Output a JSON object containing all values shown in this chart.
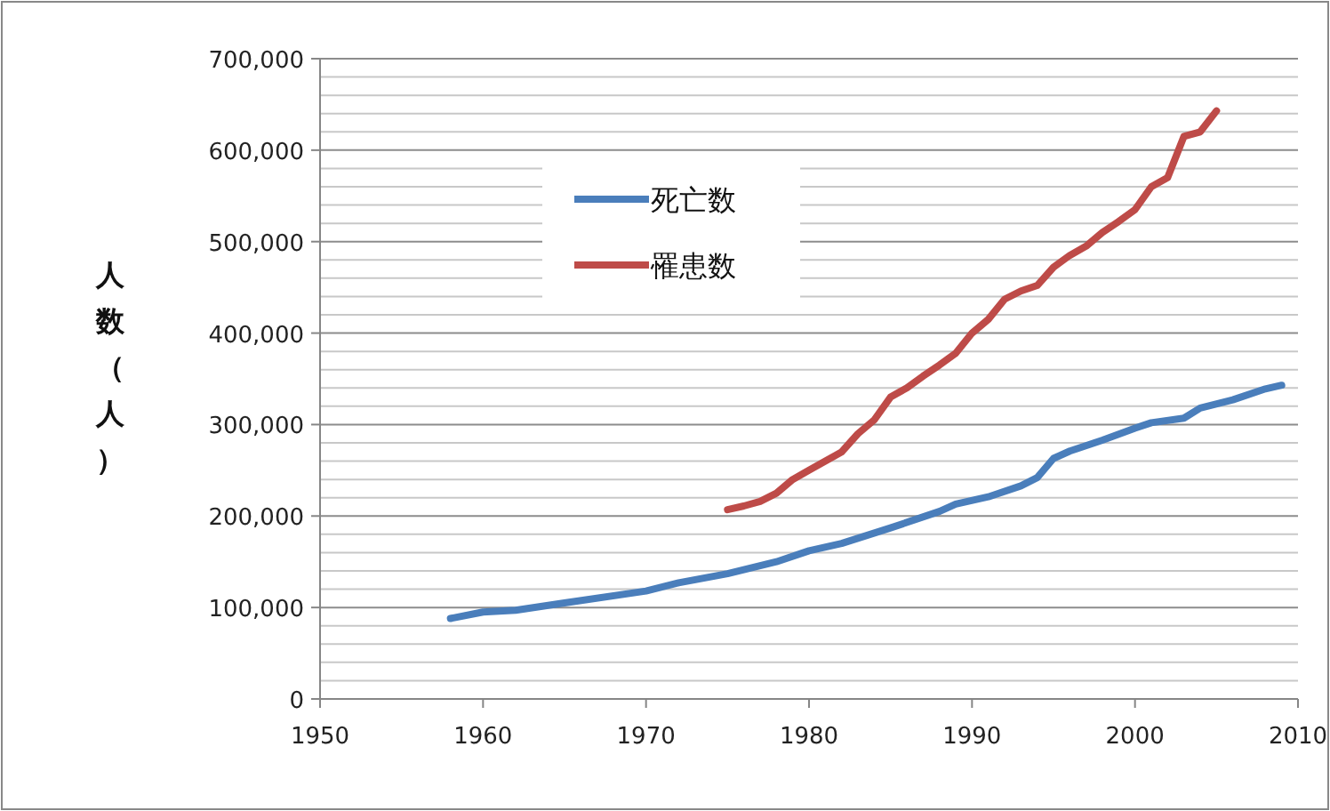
{
  "chart_data": {
    "type": "line",
    "ylabel": "人数（人）",
    "xlim": [
      1950,
      2010
    ],
    "xticks": [
      1950,
      1960,
      1970,
      1980,
      1990,
      2000,
      2010
    ],
    "ylim": [
      0,
      700000
    ],
    "yticks": [
      {
        "value": 0,
        "label": "0"
      },
      {
        "value": 100000,
        "label": "100,000"
      },
      {
        "value": 200000,
        "label": "200,000"
      },
      {
        "value": 300000,
        "label": "300,000"
      },
      {
        "value": 400000,
        "label": "400,000"
      },
      {
        "value": 500000,
        "label": "500,000"
      },
      {
        "value": 600000,
        "label": "600,000"
      },
      {
        "value": 700000,
        "label": "700,000"
      }
    ],
    "grid": "y",
    "legend": "top",
    "line_style": "solid",
    "marker": "none",
    "series": [
      {
        "name": "死亡数",
        "color": "#4a7ebb",
        "x": [
          1958,
          1960,
          1962,
          1965,
          1970,
          1972,
          1975,
          1978,
          1980,
          1982,
          1985,
          1988,
          1989,
          1991,
          1993,
          1994,
          1995,
          1996,
          1998,
          2000,
          2001,
          2003,
          2004,
          2006,
          2008,
          2009
        ],
        "values": [
          88000,
          95000,
          97000,
          105000,
          118000,
          127000,
          137000,
          150000,
          162000,
          170000,
          187000,
          205000,
          213000,
          221000,
          233000,
          242000,
          263000,
          271000,
          283000,
          296000,
          302000,
          307000,
          318000,
          327000,
          339000,
          343000
        ]
      },
      {
        "name": "罹患数",
        "color": "#be4b48",
        "x": [
          1975,
          1976,
          1977,
          1978,
          1979,
          1980,
          1981,
          1982,
          1983,
          1984,
          1985,
          1986,
          1987,
          1988,
          1989,
          1990,
          1991,
          1992,
          1993,
          1994,
          1995,
          1996,
          1997,
          1998,
          1999,
          2000,
          2001,
          2002,
          2003,
          2004,
          2005
        ],
        "values": [
          207000,
          211000,
          216000,
          225000,
          240000,
          250000,
          260000,
          270000,
          290000,
          305000,
          330000,
          340000,
          353000,
          365000,
          378000,
          400000,
          415000,
          437000,
          446000,
          452000,
          472000,
          485000,
          495000,
          510000,
          522000,
          535000,
          560000,
          570000,
          615000,
          620000,
          643000
        ]
      }
    ]
  }
}
